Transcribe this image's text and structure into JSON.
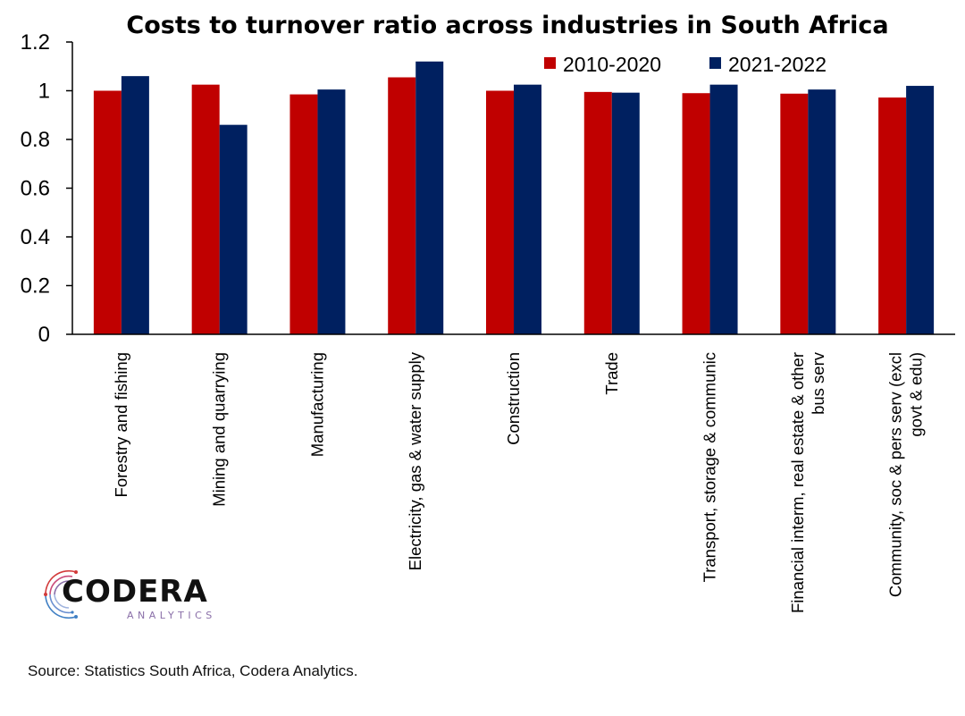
{
  "chart_data": {
    "type": "bar",
    "title": "Costs to turnover ratio across industries in South Africa",
    "categories": [
      "Forestry and fishing",
      "Mining and quarrying",
      "Manufacturing",
      "Electricity, gas & water supply",
      "Construction",
      "Trade",
      "Transport, storage & communic",
      "Financial interm, real estate & other bus serv",
      "Community, soc & pers serv  (excl govt & edu)"
    ],
    "category_lines": [
      [
        "Forestry and fishing"
      ],
      [
        "Mining and quarrying"
      ],
      [
        "Manufacturing"
      ],
      [
        "Electricity, gas & water supply"
      ],
      [
        "Construction"
      ],
      [
        "Trade"
      ],
      [
        "Transport, storage & communic"
      ],
      [
        "Financial interm, real estate & other",
        "bus serv"
      ],
      [
        "Community, soc & pers serv  (excl",
        "govt & edu)"
      ]
    ],
    "series": [
      {
        "name": "2010-2020",
        "color": "#C00000",
        "values": [
          1.0,
          1.025,
          0.985,
          1.055,
          1.0,
          0.995,
          0.99,
          0.988,
          0.972
        ]
      },
      {
        "name": "2021-2022",
        "color": "#002060",
        "values": [
          1.06,
          0.86,
          1.005,
          1.12,
          1.025,
          0.992,
          1.025,
          1.005,
          1.02
        ]
      }
    ],
    "ylim": [
      0,
      1.2
    ],
    "yticks": [
      "0",
      "0.2",
      "0.4",
      "0.6",
      "0.8",
      "1",
      "1.2"
    ],
    "ytick_values": [
      0,
      0.2,
      0.4,
      0.6,
      0.8,
      1.0,
      1.2
    ],
    "xlabel": "",
    "ylabel": "",
    "grid": false,
    "legend_position": "top-right"
  },
  "logo": {
    "word": "CODERA",
    "sub": "ANALYTICS"
  },
  "source": "Source: Statistics South Africa, Codera Analytics."
}
